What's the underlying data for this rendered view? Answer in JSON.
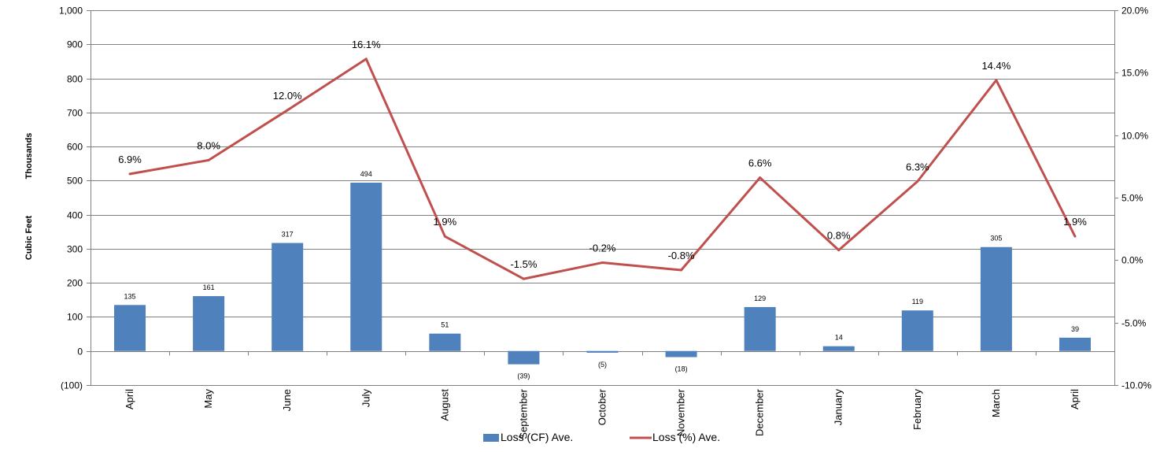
{
  "chart_data": {
    "type": "bar",
    "categories": [
      "April",
      "May",
      "June",
      "July",
      "August",
      "September",
      "October",
      "November",
      "December",
      "January",
      "February",
      "March",
      "April"
    ],
    "series": [
      {
        "name": "Loss (CF) Ave.",
        "type": "bar",
        "axis": "left",
        "color": "#4F81BD",
        "values": [
          135,
          161,
          317,
          494,
          51,
          -39,
          -5,
          -18,
          129,
          14,
          119,
          305,
          39
        ],
        "labels": [
          "135",
          "161",
          "317",
          "494",
          "51",
          "(39)",
          "(5)",
          "(18)",
          "129",
          "14",
          "119",
          "305",
          "39"
        ]
      },
      {
        "name": "Loss (%) Ave.",
        "type": "line",
        "axis": "right",
        "color": "#C0504D",
        "values": [
          6.9,
          8.0,
          12.0,
          16.1,
          1.9,
          -1.5,
          -0.2,
          -0.8,
          6.6,
          0.8,
          6.3,
          14.4,
          1.9
        ],
        "labels": [
          "6.9%",
          "8.0%",
          "12.0%",
          "16.1%",
          "1.9%",
          "-1.5%",
          "-0.2%",
          "-0.8%",
          "6.6%",
          "0.8%",
          "6.3%",
          "14.4%",
          "1.9%"
        ]
      }
    ],
    "ylabel_lines": [
      "Thousands",
      "Cubic Feet"
    ],
    "ylim": [
      -100,
      1000
    ],
    "yticks": [
      -100,
      0,
      100,
      200,
      300,
      400,
      500,
      600,
      700,
      800,
      900,
      1000
    ],
    "ytick_labels": [
      "(100)",
      "0",
      "100",
      "200",
      "300",
      "400",
      "500",
      "600",
      "700",
      "800",
      "900",
      "1,000"
    ],
    "y2lim": [
      -10,
      20
    ],
    "y2ticks": [
      -10,
      -5,
      0,
      5,
      10,
      15,
      20
    ],
    "y2tick_labels": [
      "-10.0%",
      "-5.0%",
      "0.0%",
      "5.0%",
      "10.0%",
      "15.0%",
      "20.0%"
    ],
    "grid": true,
    "legend_position": "bottom"
  }
}
